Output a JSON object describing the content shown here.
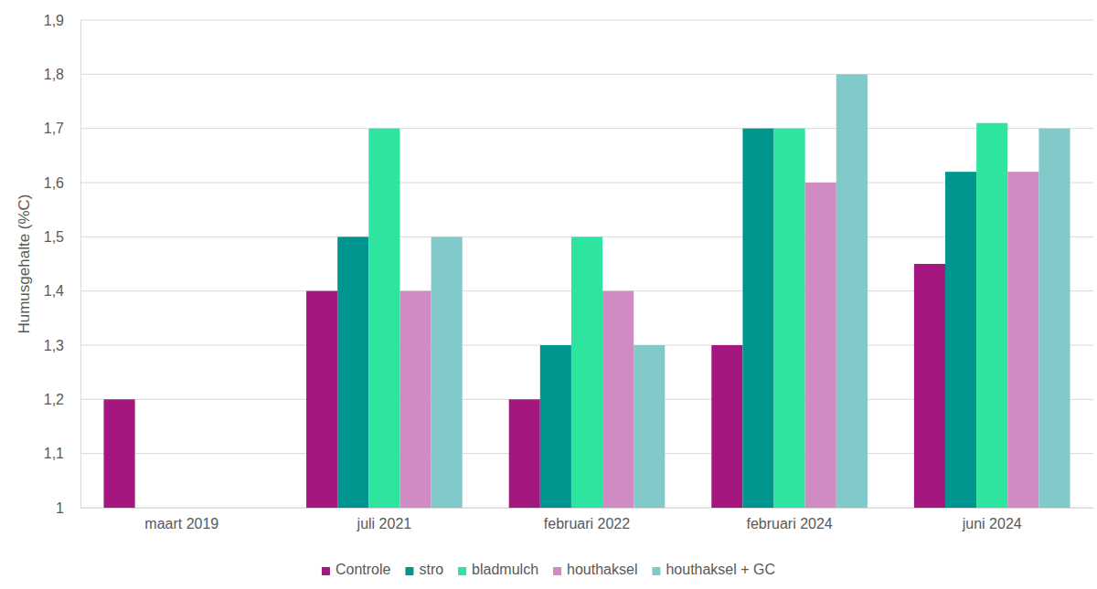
{
  "chart_data": {
    "type": "bar",
    "y_label": "Humusgehalte (%C)",
    "categories": [
      "maart 2019",
      "juli 2021",
      "februari 2022",
      "februari 2024",
      "juni 2024"
    ],
    "series": [
      {
        "name": "Controle",
        "color": "#a3177f",
        "values": [
          1.2,
          1.4,
          1.2,
          1.3,
          1.45
        ]
      },
      {
        "name": "stro",
        "color": "#009690",
        "values": [
          null,
          1.5,
          1.3,
          1.7,
          1.62
        ]
      },
      {
        "name": "bladmulch",
        "color": "#2ee5a0",
        "values": [
          null,
          1.7,
          1.5,
          1.7,
          1.71
        ]
      },
      {
        "name": "houthaksel",
        "color": "#d18bc3",
        "values": [
          null,
          1.4,
          1.4,
          1.6,
          1.62
        ]
      },
      {
        "name": "houthaksel + GC",
        "color": "#82c9c9",
        "values": [
          null,
          1.5,
          1.3,
          1.8,
          1.7
        ]
      }
    ],
    "ylim": [
      1,
      1.9
    ],
    "yticks": [
      1,
      {
        "value": 1.1,
        "label": "1,1"
      },
      {
        "value": 1.2,
        "label": "1,2"
      },
      {
        "value": 1.3,
        "label": "1,3"
      },
      {
        "value": 1.4,
        "label": "1,4"
      },
      {
        "value": 1.5,
        "label": "1,5"
      },
      {
        "value": 1.6,
        "label": "1,6"
      },
      {
        "value": 1.7,
        "label": "1,7"
      },
      {
        "value": 1.8,
        "label": "1,8"
      },
      {
        "value": 1.9,
        "label": "1,9"
      }
    ],
    "grid": true,
    "legend": "bottom"
  }
}
